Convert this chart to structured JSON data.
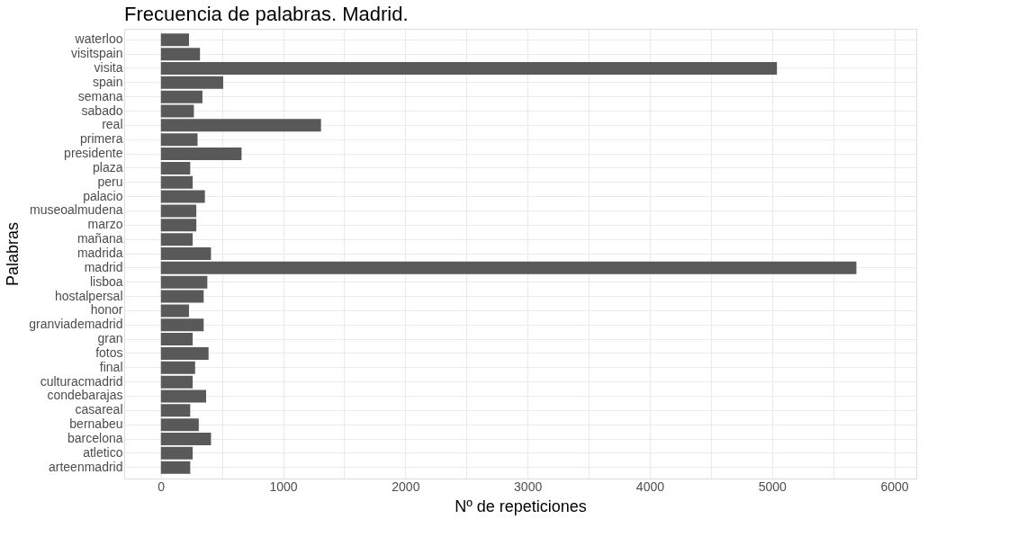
{
  "chart_data": {
    "type": "bar",
    "orientation": "horizontal",
    "title": "Frecuencia de palabras. Madrid.",
    "xlabel": "Nº de repeticiones",
    "ylabel": "Palabras",
    "categories": [
      "waterloo",
      "visitspain",
      "visita",
      "spain",
      "semana",
      "sabado",
      "real",
      "primera",
      "presidente",
      "plaza",
      "peru",
      "palacio",
      "museoalmudena",
      "marzo",
      "mañana",
      "madrida",
      "madrid",
      "lisboa",
      "hostalpersal",
      "honor",
      "granviademadrid",
      "gran",
      "fotos",
      "final",
      "culturacmadrid",
      "condebarajas",
      "casareal",
      "bernabeu",
      "barcelona",
      "atletico",
      "arteenmadrid"
    ],
    "values": [
      230,
      320,
      5040,
      510,
      340,
      270,
      1310,
      300,
      660,
      240,
      260,
      360,
      290,
      290,
      260,
      410,
      5690,
      380,
      350,
      230,
      350,
      260,
      390,
      280,
      260,
      370,
      240,
      310,
      410,
      260,
      240
    ],
    "color": "#595959",
    "xlim": [
      -300,
      6180
    ],
    "xticks": [
      0,
      {
        "value": 500,
        "label": null
      },
      1000,
      {
        "value": 1500,
        "label": null
      },
      2000,
      {
        "value": 2500,
        "label": null
      },
      3000,
      {
        "value": 3500,
        "label": null
      },
      4000,
      {
        "value": 4500,
        "label": null
      },
      5000,
      {
        "value": 5500,
        "label": null
      },
      6000
    ],
    "grid": true
  }
}
